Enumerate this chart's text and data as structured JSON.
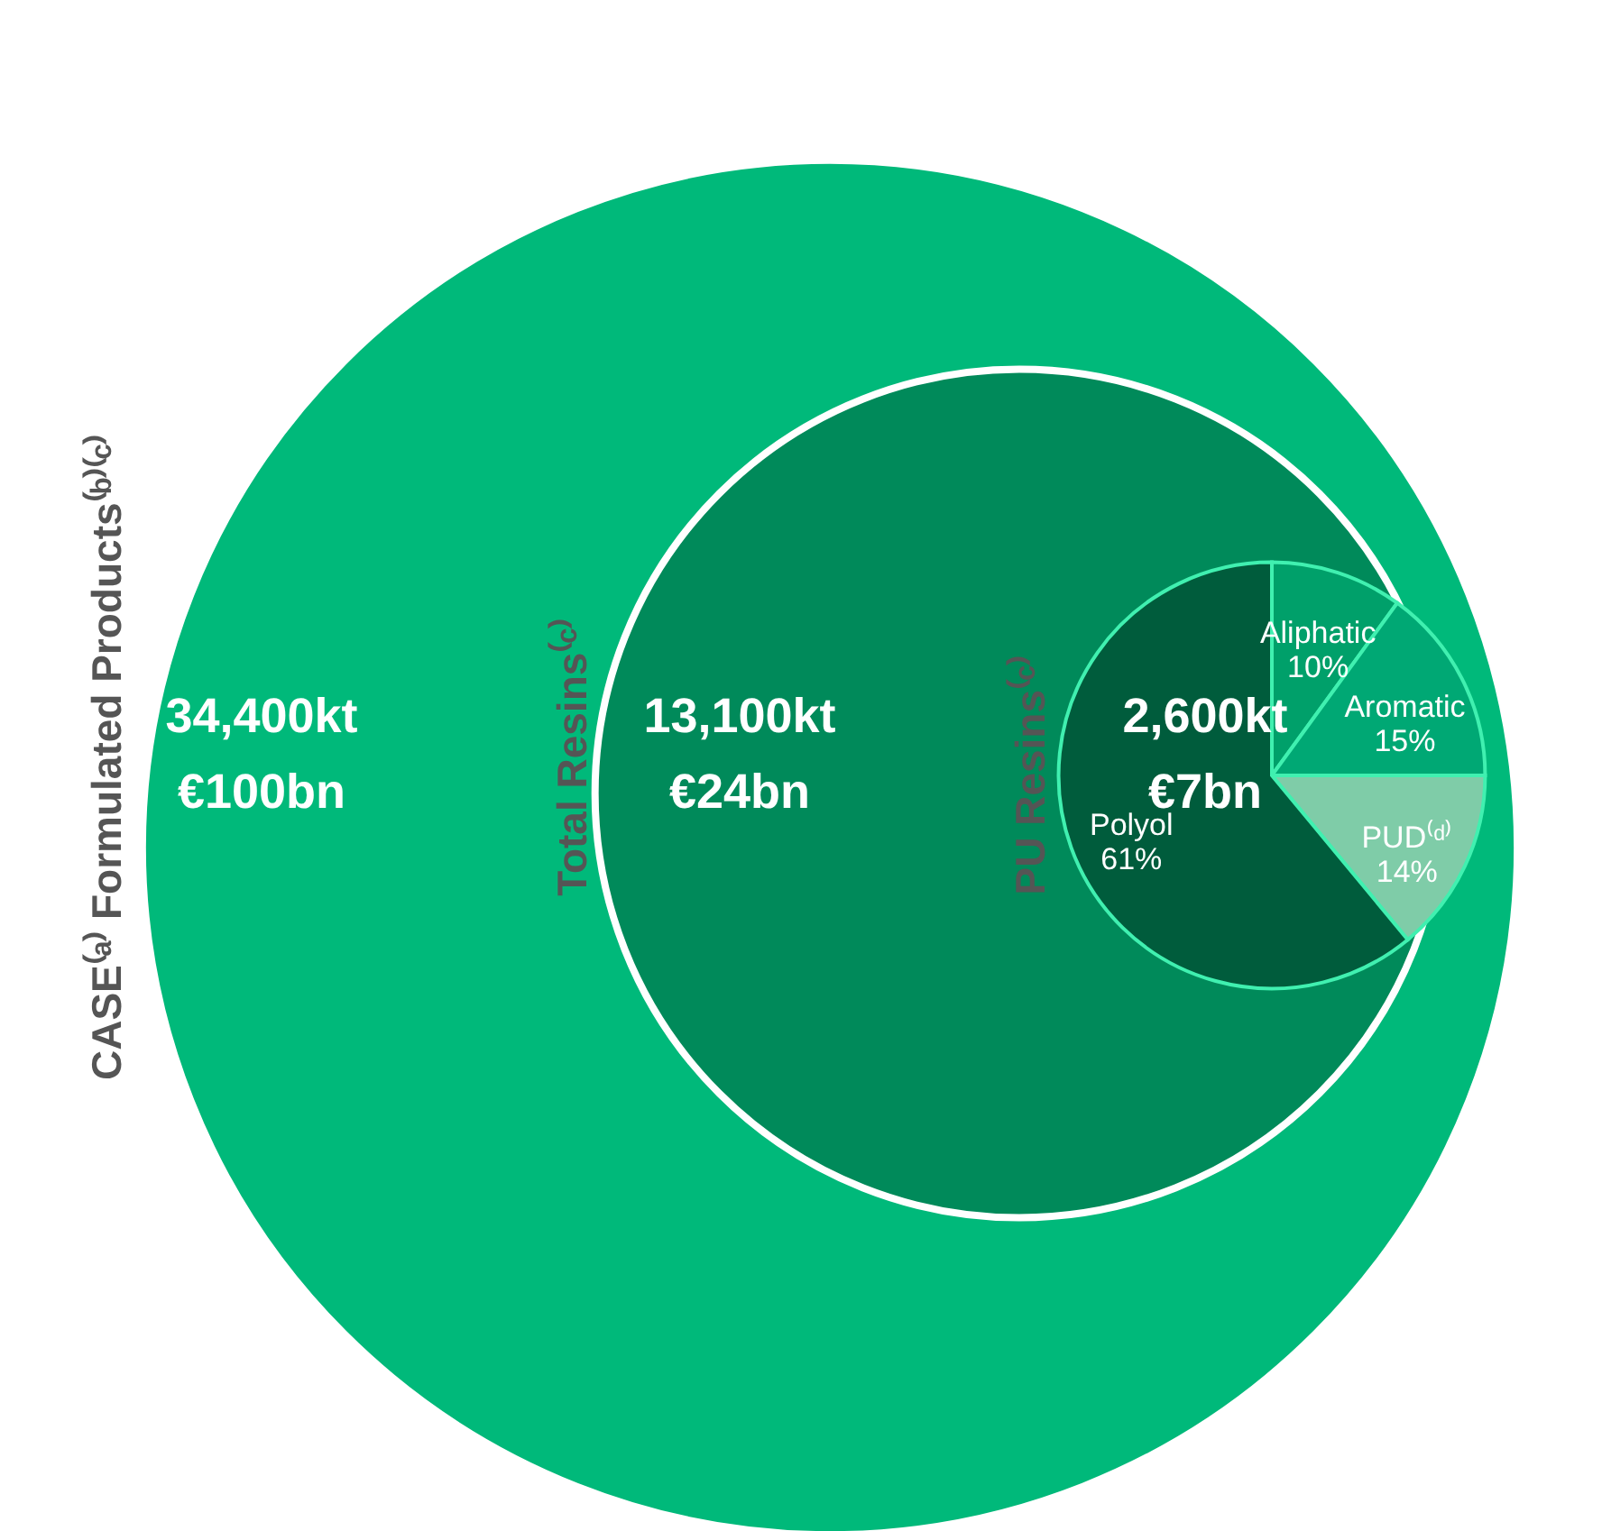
{
  "chart_data": [
    {
      "type": "other",
      "categories": [
        "CASE⁽ᵃ⁾ Formulated Products⁽ᵇ⁾⁽ᶜ⁾",
        "Total Resins⁽ᶜ⁾",
        "PU Resins⁽ᶜ⁾"
      ],
      "colors": [
        "#00b97a",
        "#008a5a",
        "#005c3c"
      ],
      "series": [
        {
          "values": [
            34400,
            13100,
            2600
          ],
          "value_labels": [
            "34,400kt",
            "13,100kt",
            "2,600kt"
          ]
        },
        {
          "values": [
            100,
            24,
            7
          ],
          "value_labels": [
            "€100bn",
            "€24bn",
            "€7bn"
          ]
        }
      ]
    },
    {
      "type": "pie",
      "categories": [
        "Aliphatic",
        "Aromatic",
        "PUD⁽ᵈ⁾",
        "Polyol"
      ],
      "values": [
        10,
        15,
        14,
        61
      ],
      "value_labels": [
        "10%",
        "15%",
        "14%",
        "61%"
      ],
      "colors": [
        "#00a06a",
        "#00a874",
        "#7fcca8",
        "#005c3c"
      ]
    }
  ]
}
